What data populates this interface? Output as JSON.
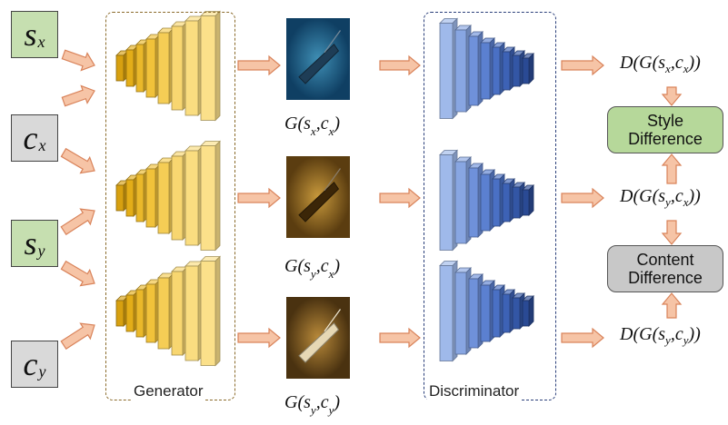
{
  "inputs": [
    {
      "symbol": "s",
      "sub": "x",
      "kind": "style"
    },
    {
      "symbol": "c",
      "sub": "x",
      "kind": "content"
    },
    {
      "symbol": "s",
      "sub": "y",
      "kind": "style"
    },
    {
      "symbol": "c",
      "sub": "y",
      "kind": "content"
    }
  ],
  "generator": {
    "label": "Generator",
    "border_color": "#8a6a2a"
  },
  "discriminator": {
    "label": "Discriminator",
    "border_color": "#2a3f7a"
  },
  "generated": [
    {
      "prefix": "G",
      "a": "s",
      "a_sub": "x",
      "b": "c",
      "b_sub": "x"
    },
    {
      "prefix": "G",
      "a": "s",
      "a_sub": "y",
      "b": "c",
      "b_sub": "x"
    },
    {
      "prefix": "G",
      "a": "s",
      "a_sub": "y",
      "b": "c",
      "b_sub": "y"
    }
  ],
  "outputs": [
    {
      "prefix": "D",
      "inner": "G",
      "a": "s",
      "a_sub": "x",
      "b": "c",
      "b_sub": "x"
    },
    {
      "prefix": "D",
      "inner": "G",
      "a": "s",
      "a_sub": "y",
      "b": "c",
      "b_sub": "x"
    },
    {
      "prefix": "D",
      "inner": "G",
      "a": "s",
      "a_sub": "y",
      "b": "c",
      "b_sub": "y"
    }
  ],
  "style_difference": {
    "line1": "Style",
    "line2": "Difference"
  },
  "content_difference": {
    "line1": "Content",
    "line2": "Difference"
  },
  "colors": {
    "arrow_fill": "#f6c4a6",
    "arrow_stroke": "#d9835a",
    "generator_layer": "#f5c33b",
    "discriminator_layer": "#5b82d2",
    "style_box": "#b6d89a",
    "content_box": "#c8c8c8"
  }
}
